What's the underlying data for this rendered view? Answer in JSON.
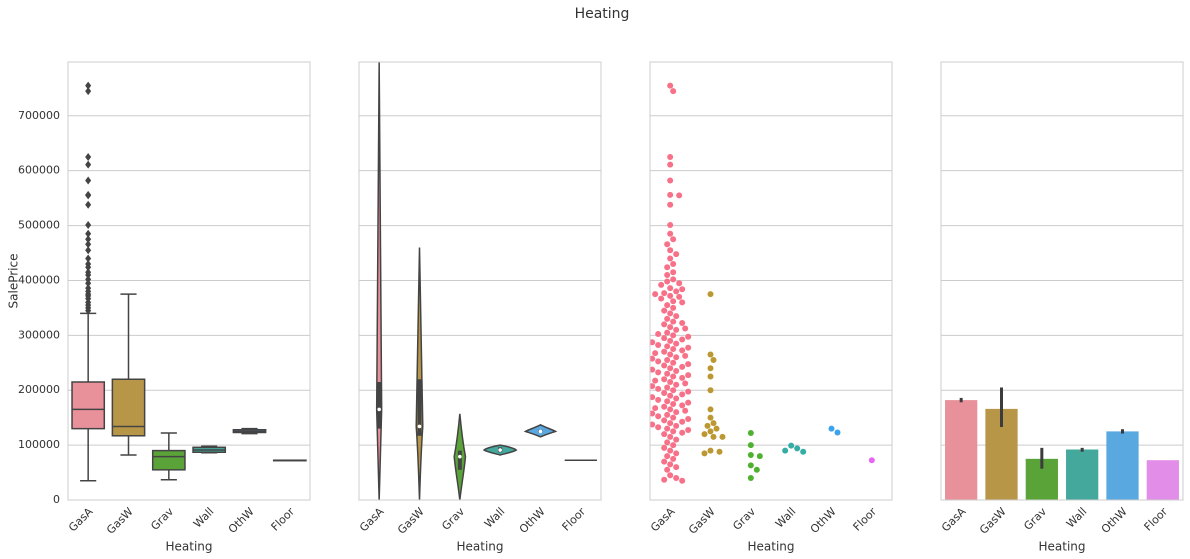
{
  "title": "Heating",
  "chart_data": [
    {
      "type": "box",
      "xlabel": "Heating",
      "ylabel": "SalePrice",
      "categories": [
        "GasA",
        "GasW",
        "Grav",
        "Wall",
        "OthW",
        "Floor"
      ],
      "colors": [
        "#e8919b",
        "#b89648",
        "#5aa339",
        "#45a89d",
        "#5aa8e0",
        "#e28ee8"
      ],
      "q1": [
        130000,
        117000,
        55000,
        87000,
        123000,
        72500
      ],
      "median": [
        165000,
        134000,
        79000,
        91000,
        125000,
        72500
      ],
      "q3": [
        215000,
        220000,
        90000,
        96000,
        128000,
        72500
      ],
      "whisker_low": [
        35000,
        82000,
        37000,
        86000,
        121000,
        72500
      ],
      "whisker_high": [
        340000,
        375000,
        122000,
        98000,
        130000,
        72500
      ],
      "outliers": [
        [
          755000,
          745000,
          625000,
          611000,
          582000,
          556000,
          555000,
          538000,
          501000,
          485000,
          475000,
          466000,
          455000,
          440000,
          430000,
          424000,
          415000,
          410000,
          402000,
          395000,
          386000,
          380000,
          375000,
          372000,
          367000,
          360000,
          355000,
          350000,
          345000
        ],
        [],
        [],
        [],
        [],
        []
      ],
      "ylim": [
        0,
        798000
      ],
      "yticks": [
        0,
        100000,
        200000,
        300000,
        400000,
        500000,
        600000,
        700000
      ],
      "grid": true
    },
    {
      "type": "violin",
      "xlabel": "Heating",
      "categories": [
        "GasA",
        "GasW",
        "Grav",
        "Wall",
        "OthW",
        "Floor"
      ],
      "colors": [
        "#e8919b",
        "#b89648",
        "#5aa339",
        "#45a89d",
        "#5aa8e0",
        "#e28ee8"
      ],
      "min": [
        0,
        0,
        0,
        82000,
        115000,
        72500
      ],
      "q1": [
        130000,
        117000,
        55000,
        87000,
        123000,
        72500
      ],
      "median": [
        165000,
        134000,
        79000,
        91000,
        125000,
        72500
      ],
      "q3": [
        215000,
        220000,
        90000,
        96000,
        128000,
        72500
      ],
      "max": [
        798000,
        460000,
        157000,
        100000,
        137000,
        72500
      ],
      "ylim": [
        0,
        798000
      ],
      "yticks": [
        0,
        100000,
        200000,
        300000,
        400000,
        500000,
        600000,
        700000
      ],
      "grid": true
    },
    {
      "type": "swarm",
      "xlabel": "Heating",
      "categories": [
        "GasA",
        "GasW",
        "Grav",
        "Wall",
        "OthW",
        "Floor"
      ],
      "colors": [
        "#f77189",
        "#bb9832",
        "#50b131",
        "#36ada4",
        "#3ba3ec",
        "#e866f4"
      ],
      "values": [
        [
          755000,
          745000,
          625000,
          611000,
          582000,
          556000,
          555000,
          538000,
          501000,
          485000,
          475000,
          466000,
          455000,
          448000,
          440000,
          430000,
          424000,
          415000,
          410000,
          402000,
          398000,
          395000,
          392000,
          386000,
          384000,
          380000,
          377000,
          375000,
          372000,
          370000,
          367000,
          362000,
          360000,
          355000,
          350000,
          345000,
          340000,
          335000,
          330000,
          325000,
          320000,
          315000,
          310000,
          305000,
          300000,
          295000,
          290000,
          285000,
          280000,
          275000,
          270000,
          265000,
          260000,
          255000,
          250000,
          245000,
          240000,
          235000,
          230000,
          225000,
          220000,
          215000,
          210000,
          205000,
          200000,
          195000,
          190000,
          185000,
          180000,
          175000,
          170000,
          165000,
          160000,
          155000,
          150000,
          145000,
          140000,
          135000,
          130000,
          125000,
          120000,
          115000,
          110000,
          105000,
          100000,
          95000,
          90000,
          85000,
          80000,
          75000,
          70000,
          65000,
          60000,
          55000,
          45000,
          40000,
          37000,
          35000,
          122500,
          132500,
          142500,
          152500,
          162500,
          172500,
          182500,
          192500,
          202500,
          212500,
          222500,
          232500,
          242500,
          252500,
          262500,
          272500,
          282500,
          292500,
          302500,
          312500,
          322500,
          127500,
          137500,
          147500,
          157500,
          167500,
          177500,
          187500,
          197500,
          207500,
          217500,
          227500,
          237500,
          247500,
          257500,
          267500,
          277500,
          287500,
          297500
        ],
        [
          375000,
          265000,
          255000,
          240000,
          225000,
          200000,
          165000,
          150000,
          140000,
          135000,
          130000,
          125000,
          120000,
          115000,
          115000,
          90000,
          88000,
          85000
        ],
        [
          122000,
          100000,
          82000,
          80000,
          63000,
          55000,
          40000
        ],
        [
          99000,
          94000,
          90000,
          88000
        ],
        [
          130000,
          123000
        ],
        [
          72500
        ]
      ],
      "ylim": [
        0,
        798000
      ],
      "yticks": [
        0,
        100000,
        200000,
        300000,
        400000,
        500000,
        600000,
        700000
      ],
      "grid": true
    },
    {
      "type": "bar",
      "xlabel": "Heating",
      "categories": [
        "GasA",
        "GasW",
        "Grav",
        "Wall",
        "OthW",
        "Floor"
      ],
      "colors": [
        "#e8919b",
        "#b89648",
        "#5aa339",
        "#45a89d",
        "#5aa8e0",
        "#e28ee8"
      ],
      "values": [
        182000,
        166000,
        75000,
        92000,
        125000,
        72500
      ],
      "ci_low": [
        178000,
        133000,
        57000,
        88000,
        121000,
        null
      ],
      "ci_high": [
        186000,
        205000,
        95000,
        95000,
        129000,
        null
      ],
      "ylim": [
        0,
        798000
      ],
      "yticks": [
        0,
        100000,
        200000,
        300000,
        400000,
        500000,
        600000,
        700000
      ],
      "grid": true
    }
  ]
}
